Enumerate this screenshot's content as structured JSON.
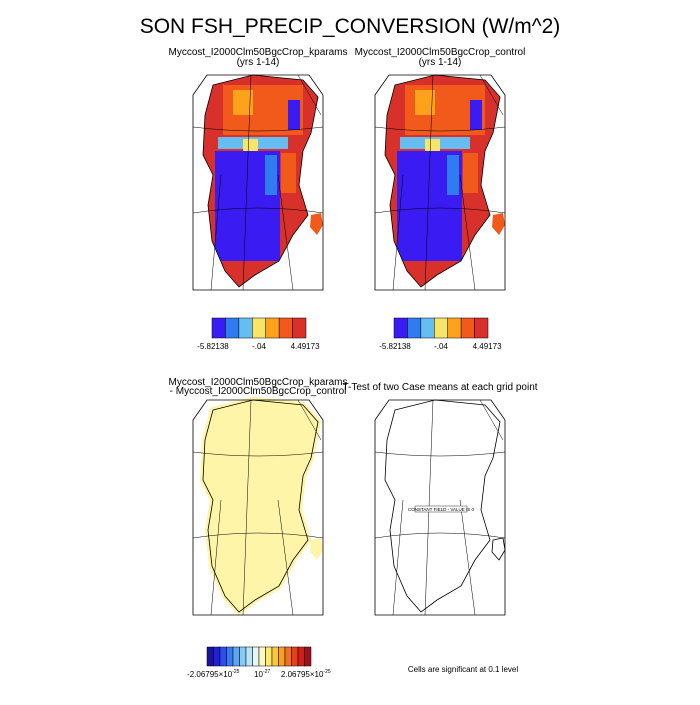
{
  "title": "SON FSH_PRECIP_CONVERSION (W/m^2)",
  "panels": [
    {
      "title": "Myccost_I2000Clm50BgcCrop_kparams",
      "subtitle": "(yrs 1-14)",
      "colorbar": {
        "colors": [
          "#3a1cf2",
          "#2f7cf0",
          "#66bdf2",
          "#f7e56a",
          "#fda21a",
          "#f25a1c",
          "#d8302a"
        ],
        "labels": [
          "-5.82138",
          "-.04",
          "4.49173"
        ]
      }
    },
    {
      "title": "Myccost_I2000Clm50BgcCrop_control",
      "subtitle": "(yrs 1-14)",
      "colorbar": {
        "colors": [
          "#3a1cf2",
          "#2f7cf0",
          "#66bdf2",
          "#f7e56a",
          "#fda21a",
          "#f25a1c",
          "#d8302a"
        ],
        "labels": [
          "-5.82138",
          "-.04",
          "4.49173"
        ]
      }
    },
    {
      "title": "Myccost_I2000Clm50BgcCrop_kparams",
      "subtitle": "- Myccost_I2000Clm50BgcCrop_control"
    },
    {
      "title": "T-Test of two Case means at each grid point",
      "annotation": "CONSTANT FIELD - VALUE IS 0"
    }
  ],
  "difference_colorbar": {
    "colors": [
      "#1c12a0",
      "#2020d8",
      "#2a4ef0",
      "#3a7cf0",
      "#5ca6f4",
      "#86c8f6",
      "#b8e4f8",
      "#e6f6f8",
      "#fff8c0",
      "#fbe96a",
      "#f8c83a",
      "#f8a020",
      "#f4701c",
      "#e8401c",
      "#d0201c",
      "#a01018"
    ],
    "labels": [
      {
        "mantissa": "-2.06795×10",
        "exponent": "-25"
      },
      {
        "mantissa": "10",
        "exponent": "-27"
      },
      {
        "mantissa": "2.06795×10",
        "exponent": "-25"
      }
    ]
  },
  "significance_note": "Cells are significant at 0.1 level"
}
